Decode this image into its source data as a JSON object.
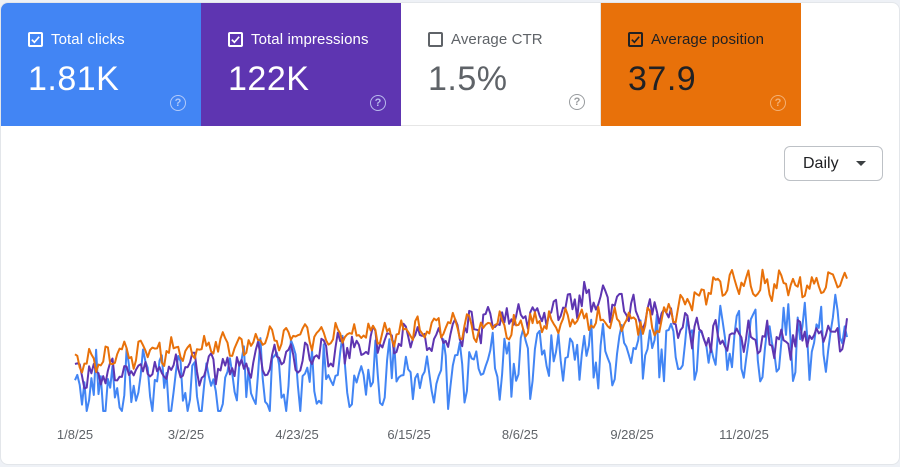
{
  "metrics": [
    {
      "label": "Total clicks",
      "value": "1.81K",
      "checked": true,
      "color": "#4285f4"
    },
    {
      "label": "Total impressions",
      "value": "122K",
      "checked": true,
      "color": "#5e35b1"
    },
    {
      "label": "Average CTR",
      "value": "1.5%",
      "checked": false,
      "color": "#ffffff"
    },
    {
      "label": "Average position",
      "value": "37.9",
      "checked": true,
      "color": "#e8710a"
    }
  ],
  "help_glyph": "?",
  "granularity": {
    "selected": "Daily"
  },
  "chart_data": {
    "type": "line",
    "x_ticks": [
      "1/8/25",
      "3/2/25",
      "4/23/25",
      "6/15/25",
      "8/6/25",
      "9/28/25",
      "11/20/25"
    ],
    "grid": false,
    "legend": "none",
    "series": [
      {
        "name": "Total clicks",
        "color": "#4285f4",
        "trend": [
          0.12,
          0.14,
          0.16,
          0.18,
          0.2,
          0.23,
          0.26,
          0.3,
          0.36,
          0.42,
          0.4,
          0.46,
          0.5
        ]
      },
      {
        "name": "Total impressions",
        "color": "#5e35b1",
        "trend": [
          0.22,
          0.25,
          0.28,
          0.32,
          0.38,
          0.44,
          0.5,
          0.58,
          0.72,
          0.6,
          0.46,
          0.44,
          0.5
        ]
      },
      {
        "name": "Average position",
        "color": "#e8710a",
        "trend": [
          0.3,
          0.35,
          0.4,
          0.45,
          0.48,
          0.5,
          0.52,
          0.55,
          0.58,
          0.55,
          0.8,
          0.78,
          0.8
        ]
      }
    ]
  }
}
